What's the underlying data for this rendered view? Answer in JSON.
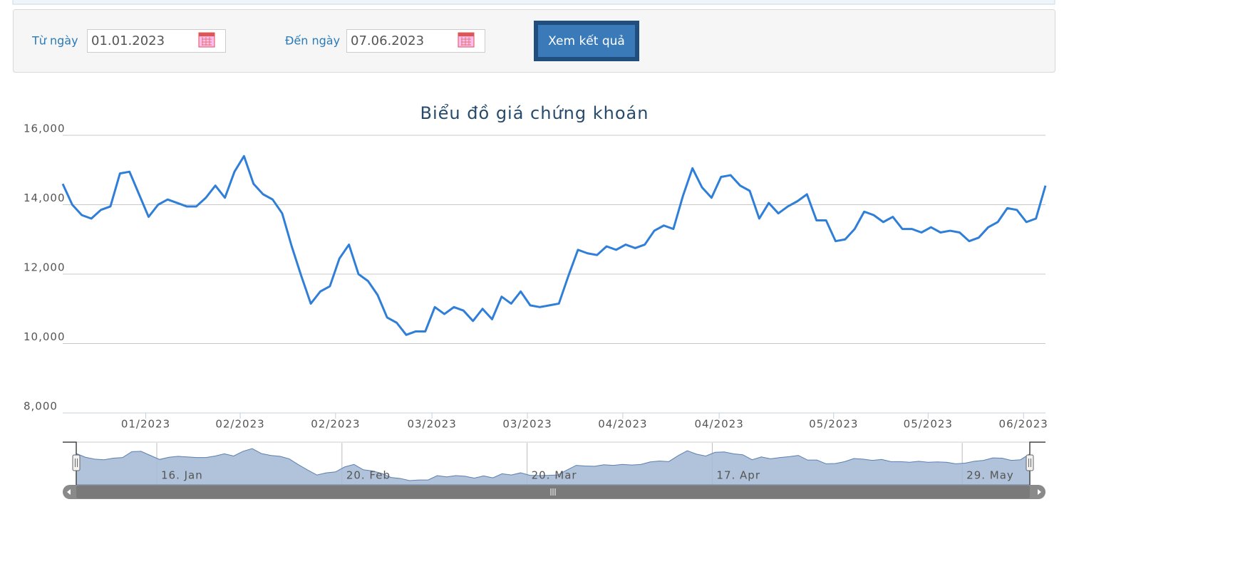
{
  "form": {
    "from_label": "Từ ngày",
    "from_value": "01.01.2023",
    "to_label": "Đến ngày",
    "to_value": "07.06.2023",
    "button": "Xem kết quả"
  },
  "chart_data": {
    "type": "line",
    "title": "Biểu đồ giá chứng khoán",
    "color": "#2f7ed8",
    "grid": true,
    "values": [
      14600,
      14000,
      13700,
      13600,
      13850,
      13950,
      14900,
      14950,
      14300,
      13650,
      14000,
      14150,
      14050,
      13950,
      13950,
      14200,
      14550,
      14200,
      14950,
      15400,
      14600,
      14300,
      14150,
      13750,
      12800,
      11950,
      11150,
      11500,
      11650,
      12450,
      12850,
      12000,
      11800,
      11400,
      10750,
      10600,
      10250,
      10350,
      10350,
      11050,
      10850,
      11050,
      10950,
      10650,
      11000,
      10700,
      11350,
      11150,
      11500,
      11100,
      11050,
      11100,
      11150,
      11950,
      12700,
      12600,
      12550,
      12800,
      12700,
      12850,
      12750,
      12850,
      13250,
      13400,
      13300,
      14250,
      15050,
      14500,
      14200,
      14800,
      14850,
      14550,
      14400,
      13600,
      14050,
      13750,
      13950,
      14100,
      14300,
      13550,
      13550,
      12950,
      13000,
      13300,
      13800,
      13700,
      13500,
      13650,
      13300,
      13300,
      13200,
      13350,
      13200,
      13250,
      13200,
      12950,
      13050,
      13350,
      13500,
      13900,
      13850,
      13500,
      13600,
      14550
    ],
    "xlim": [
      0,
      103
    ],
    "xticks": [
      {
        "value": 8.7,
        "label": "01/2023"
      },
      {
        "value": 18.6,
        "label": "02/2023"
      },
      {
        "value": 28.6,
        "label": "02/2023"
      },
      {
        "value": 38.7,
        "label": "03/2023"
      },
      {
        "value": 48.7,
        "label": "03/2023"
      },
      {
        "value": 58.7,
        "label": "04/2023"
      },
      {
        "value": 68.8,
        "label": "04/2023"
      },
      {
        "value": 80.8,
        "label": "05/2023"
      },
      {
        "value": 90.7,
        "label": "05/2023"
      },
      {
        "value": 100.7,
        "label": "06/2023"
      }
    ],
    "ylim": [
      8000,
      16000
    ],
    "yticks": [
      {
        "value": 8000,
        "label": "8,000"
      },
      {
        "value": 10000,
        "label": "10,000"
      },
      {
        "value": 12000,
        "label": "12,000"
      },
      {
        "value": 14000,
        "label": "14,000"
      },
      {
        "value": 16000,
        "label": "16,000"
      }
    ],
    "navigator_xticks": [
      {
        "value": 8.7,
        "label": "16. Jan"
      },
      {
        "value": 28.7,
        "label": "20. Feb"
      },
      {
        "value": 48.7,
        "label": "20. Mar"
      },
      {
        "value": 68.7,
        "label": "17. Apr"
      },
      {
        "value": 95.7,
        "label": "29. May"
      }
    ]
  }
}
